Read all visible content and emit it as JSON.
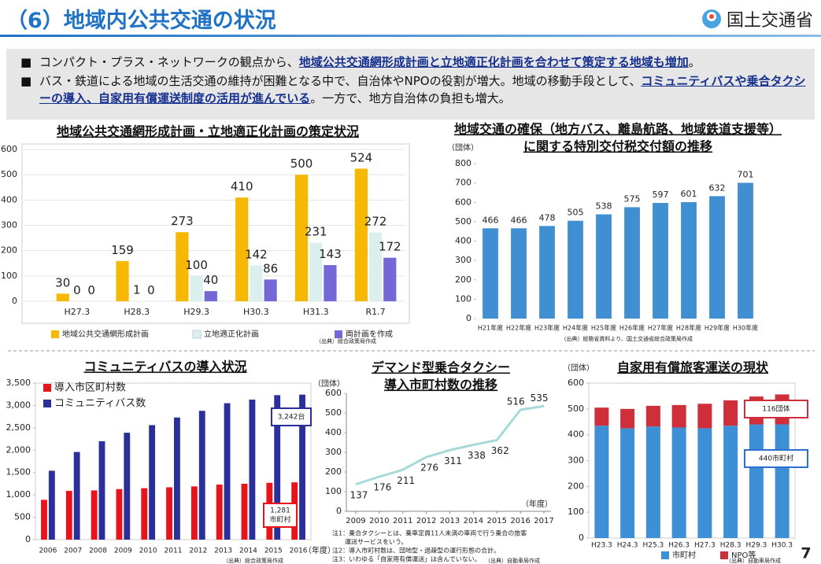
{
  "header": {
    "title": "（6）地域内公共交通の状況",
    "logo": "国土交通省"
  },
  "bullets": [
    [
      "コンパクト・プラス・ネットワークの観点から、",
      "地域公共交通網形成計画と立地適正化計画を合わせて策定する地域も増加",
      "。"
    ],
    [
      "バス・鉄道による地域の生活交通の維持が困難となる中で、自治体やNPOの役割が増大。地域の移動手段として、",
      "コミュニティバスや乗合タクシーの導入、自家用有償運送制度の活用が進んでいる",
      "。一方で、地方自治体の負担も増大。"
    ]
  ],
  "page_number": "7",
  "chart_data": [
    {
      "type": "bar",
      "title": "地域公共交通網形成計画・立地適正化計画の策定状況",
      "categories": [
        "H27.3",
        "H28.3",
        "H29.3",
        "H30.3",
        "H31.3",
        "R1.7"
      ],
      "series": [
        {
          "name": "地域公共交通網形成計画",
          "color": "#f6b800",
          "values": [
            30,
            159,
            273,
            410,
            500,
            524
          ]
        },
        {
          "name": "立地適正化計画",
          "color": "#dcefef",
          "values": [
            0,
            1,
            100,
            142,
            231,
            272
          ]
        },
        {
          "name": "両計画を作成",
          "color": "#7467d6",
          "values": [
            0,
            0,
            40,
            86,
            143,
            172
          ]
        }
      ],
      "ylim": [
        0,
        600
      ],
      "yticks": [
        0,
        100,
        200,
        300,
        400,
        500,
        600
      ],
      "grid": true,
      "data_labels": true,
      "legend": "bottom",
      "source": "（出典）総合政策局作成"
    },
    {
      "type": "bar",
      "title_lines": [
        "地域交通の確保（地方バス、離島航路、地域鉄道支援等）",
        "に関する特別交付税交付額の推移"
      ],
      "ylabel": "（団体）",
      "categories": [
        "H21年度",
        "H22年度",
        "H23年度",
        "H24年度",
        "H25年度",
        "H26年度",
        "H27年度",
        "H28年度",
        "H29年度",
        "H30年度"
      ],
      "values": [
        466,
        466,
        478,
        505,
        538,
        575,
        597,
        601,
        632,
        701
      ],
      "color": "#3f8fd2",
      "ylim": [
        0,
        800
      ],
      "yticks": [
        0,
        100,
        200,
        300,
        400,
        500,
        600,
        700,
        800
      ],
      "grid": false,
      "data_labels": true,
      "source": "（出典）総務省資料より、国土交通省総合政策局作成"
    },
    {
      "type": "bar",
      "title": "コミュニティバスの導入状況",
      "xlabel": "（年度）",
      "categories": [
        "2006",
        "2007",
        "2008",
        "2009",
        "2010",
        "2011",
        "2012",
        "2013",
        "2014",
        "2015",
        "2016"
      ],
      "series": [
        {
          "name": "導入市区町村数",
          "color": "#e8141b",
          "values": [
            890,
            1090,
            1100,
            1130,
            1150,
            1170,
            1190,
            1230,
            1250,
            1270,
            1281
          ]
        },
        {
          "name": "コミュニティバス数",
          "color": "#2b2f9a",
          "values": [
            1540,
            1960,
            2200,
            2390,
            2560,
            2730,
            2880,
            3050,
            3130,
            3230,
            3242
          ]
        }
      ],
      "ylim": [
        0,
        3500
      ],
      "yticks": [
        0,
        500,
        {
          "value": 1000,
          "label": "1,000"
        },
        {
          "value": 1500,
          "label": "1,500"
        },
        {
          "value": 2000,
          "label": "2,000"
        },
        {
          "value": 2500,
          "label": "2,500"
        },
        {
          "value": 3000,
          "label": "3,000"
        },
        {
          "value": 3500,
          "label": "3,500"
        }
      ],
      "grid": false,
      "data_labels": false,
      "legend": "upper left",
      "annotations": [
        [
          "3,242台"
        ],
        [
          "1,281",
          "市町村"
        ]
      ],
      "source": "（出典）総合政策局作成"
    },
    {
      "type": "line",
      "title_lines": [
        "デマンド型乗合タクシー",
        "導入市町村数の推移"
      ],
      "ylabel": "（団体）",
      "xlabel": "（年度）",
      "x": [
        2009,
        2010,
        2011,
        2012,
        2013,
        2014,
        2015,
        2016,
        2017
      ],
      "values": [
        137,
        176,
        211,
        276,
        311,
        338,
        362,
        516,
        535
      ],
      "color": "#a6dada",
      "xlim": [
        2008.6,
        2017.3
      ],
      "xticks": [
        2009,
        2010,
        2011,
        2012,
        2013,
        2014,
        2015,
        2016,
        2017
      ],
      "ylim": [
        0,
        600
      ],
      "yticks": [
        0,
        100,
        200,
        300,
        400,
        500,
        600
      ],
      "grid": false,
      "data_labels": true,
      "notes": [
        "注1：乗合タクシーとは、乗車定員11人未満の車両で行う乗合の旅客",
        "　　運送サービスをいう。",
        "注2：導入市町村数は、団地型・過疎型の運行形態の合計。",
        "注3：いわゆる「自家用有償運送」は含んでいない。"
      ],
      "source": "（出典）自動車局作成"
    },
    {
      "type": "bar",
      "stacked": true,
      "title": "自家用有償旅客運送の現状",
      "ylabel": "（団体）",
      "categories": [
        "H23.3",
        "H24.3",
        "H25.3",
        "H26.3",
        "H27.3",
        "H28.3",
        "H29.3",
        "H30.3"
      ],
      "series": [
        {
          "name": "市町村",
          "color": "#3d8fd6",
          "values": [
            435,
            425,
            432,
            428,
            425,
            435,
            440,
            440
          ]
        },
        {
          "name": "NPO等",
          "color": "#cf2e3b",
          "values": [
            70,
            75,
            80,
            87,
            95,
            98,
            108,
            116
          ]
        }
      ],
      "ylim": [
        0,
        600
      ],
      "yticks": [
        0,
        100,
        200,
        300,
        400,
        500,
        600
      ],
      "grid": false,
      "data_labels": false,
      "legend": "bottom",
      "annotations": [
        [
          "116団体"
        ],
        [
          "440市町村"
        ]
      ],
      "source": "（出典）自動車局作成"
    }
  ]
}
